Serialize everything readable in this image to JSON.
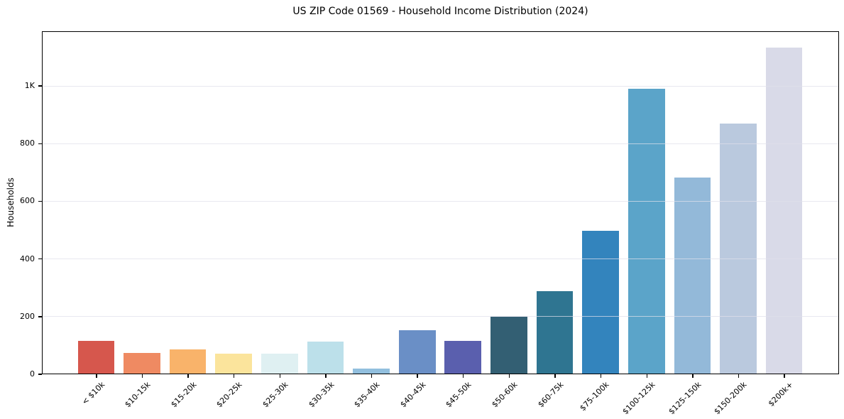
{
  "chart_data": {
    "type": "bar",
    "title": "US ZIP Code 01569 - Household Income Distribution (2024)",
    "xlabel": "",
    "ylabel": "Households",
    "categories": [
      "< $10k",
      "$10-15k",
      "$15-20k",
      "$20-25k",
      "$25-30k",
      "$30-35k",
      "$35-40k",
      "$40-45k",
      "$45-50k",
      "$50-60k",
      "$60-75k",
      "$75-100k",
      "$100-125k",
      "$125-150k",
      "$150-200k",
      "$200k+"
    ],
    "values": [
      113,
      71,
      83,
      69,
      68,
      111,
      18,
      150,
      114,
      198,
      287,
      494,
      988,
      681,
      868,
      1131
    ],
    "bar_colors": [
      "#d6574d",
      "#ef8a62",
      "#f9b36a",
      "#fbe49c",
      "#dff0f2",
      "#bce0ea",
      "#92bfde",
      "#6a8fc6",
      "#5a5fae",
      "#335f73",
      "#2f7591",
      "#3384bd",
      "#5ba4c9",
      "#93b9d9",
      "#bac9de",
      "#d9dae8"
    ],
    "ylim": [
      0,
      1190
    ],
    "yticks": [
      {
        "value": 0,
        "label": "0"
      },
      {
        "value": 200,
        "label": "200"
      },
      {
        "value": 400,
        "label": "400"
      },
      {
        "value": 600,
        "label": "600"
      },
      {
        "value": 800,
        "label": "800"
      },
      {
        "value": 1000,
        "label": "1K"
      }
    ],
    "grid": "horizontal-on",
    "legend": "none"
  }
}
